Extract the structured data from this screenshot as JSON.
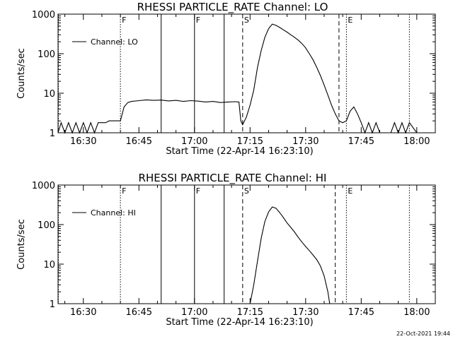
{
  "chart_data": [
    {
      "type": "line",
      "title": "RHESSI PARTICLE_RATE Channel: LO",
      "xlabel": "Start Time (22-Apr-14 16:23:10)",
      "ylabel": "Counts/sec",
      "y_scale": "log",
      "ylim": [
        1,
        1000
      ],
      "xlim": [
        "16:23:10",
        "18:05"
      ],
      "x_ticks": [
        "16:30",
        "16:45",
        "17:00",
        "17:15",
        "17:30",
        "17:45",
        "18:00"
      ],
      "y_ticks": [
        "1",
        "10",
        "100",
        "1000"
      ],
      "legend": {
        "placement": "top-left",
        "entries": [
          "Channel: LO"
        ]
      },
      "markers": [
        {
          "label": "",
          "time": "16:23:15",
          "style": "dotted"
        },
        {
          "label": "F",
          "time": "16:40",
          "style": "dotted"
        },
        {
          "label": "",
          "time": "16:51",
          "style": "solid"
        },
        {
          "label": "F",
          "time": "17:00",
          "style": "solid"
        },
        {
          "label": "",
          "time": "17:08",
          "style": "solid"
        },
        {
          "label": "S",
          "time": "17:13",
          "style": "dashed"
        },
        {
          "label": "",
          "time": "17:39",
          "style": "dashed"
        },
        {
          "label": "E",
          "time": "17:41",
          "style": "dotted"
        },
        {
          "label": "",
          "time": "17:58",
          "style": "dotted"
        }
      ],
      "series": [
        {
          "points": [
            [
              "16:23:10",
              1
            ],
            [
              "16:24",
              1.8
            ],
            [
              "16:25",
              1
            ],
            [
              "16:26",
              1.8
            ],
            [
              "16:27",
              1
            ],
            [
              "16:28",
              1.8
            ],
            [
              "16:29",
              1
            ],
            [
              "16:30",
              1.8
            ],
            [
              "16:31",
              1
            ],
            [
              "16:32",
              1.8
            ],
            [
              "16:33",
              1
            ],
            [
              "16:34",
              1.8
            ],
            [
              "16:35",
              1.8
            ],
            [
              "16:36",
              1.8
            ],
            [
              "16:37",
              2
            ],
            [
              "16:38",
              2
            ],
            [
              "16:39",
              2
            ],
            [
              "16:40",
              2
            ],
            [
              "16:41",
              4.5
            ],
            [
              "16:42",
              5.8
            ],
            [
              "16:43",
              6.2
            ],
            [
              "16:45",
              6.5
            ],
            [
              "16:47",
              6.8
            ],
            [
              "16:49",
              6.6
            ],
            [
              "16:51",
              6.7
            ],
            [
              "16:53",
              6.4
            ],
            [
              "16:55",
              6.6
            ],
            [
              "16:57",
              6.2
            ],
            [
              "16:59",
              6.5
            ],
            [
              "17:01",
              6.3
            ],
            [
              "17:03",
              6.0
            ],
            [
              "17:05",
              6.2
            ],
            [
              "17:07",
              5.8
            ],
            [
              "17:09",
              6.0
            ],
            [
              "17:11",
              6.1
            ],
            [
              "17:12",
              6.0
            ],
            [
              "17:12:30",
              2.0
            ],
            [
              "17:13",
              1.6
            ],
            [
              "17:14",
              2.5
            ],
            [
              "17:15",
              5
            ],
            [
              "17:16",
              12
            ],
            [
              "17:17",
              45
            ],
            [
              "17:18",
              120
            ],
            [
              "17:19",
              260
            ],
            [
              "17:20",
              430
            ],
            [
              "17:21",
              560
            ],
            [
              "17:22",
              520
            ],
            [
              "17:23",
              460
            ],
            [
              "17:24",
              400
            ],
            [
              "17:25",
              350
            ],
            [
              "17:26",
              300
            ],
            [
              "17:27",
              260
            ],
            [
              "17:28",
              220
            ],
            [
              "17:29",
              180
            ],
            [
              "17:30",
              140
            ],
            [
              "17:31",
              100
            ],
            [
              "17:32",
              70
            ],
            [
              "17:33",
              45
            ],
            [
              "17:34",
              28
            ],
            [
              "17:35",
              16
            ],
            [
              "17:36",
              9
            ],
            [
              "17:37",
              5
            ],
            [
              "17:38",
              3
            ],
            [
              "17:39",
              2
            ],
            [
              "17:40",
              1.8
            ],
            [
              "17:41",
              2
            ],
            [
              "17:42",
              3.5
            ],
            [
              "17:43",
              4.5
            ],
            [
              "17:44",
              3
            ],
            [
              "17:45",
              1.8
            ],
            [
              "17:46",
              1
            ],
            [
              "17:47",
              1.8
            ],
            [
              "17:48",
              1
            ],
            [
              "17:49",
              1.8
            ],
            [
              "17:50",
              1
            ],
            [
              "17:53",
              1
            ],
            [
              "17:54",
              1.8
            ],
            [
              "17:55",
              1
            ],
            [
              "17:56",
              1.8
            ],
            [
              "17:57",
              1
            ],
            [
              "17:58",
              1.8
            ],
            [
              "18:00",
              1
            ],
            [
              "18:05",
              1
            ]
          ]
        }
      ]
    },
    {
      "type": "line",
      "title": "RHESSI PARTICLE_RATE Channel: HI",
      "xlabel": "Start Time (22-Apr-14 16:23:10)",
      "ylabel": "Counts/sec",
      "y_scale": "log",
      "ylim": [
        1,
        1000
      ],
      "xlim": [
        "16:23:10",
        "18:05"
      ],
      "x_ticks": [
        "16:30",
        "16:45",
        "17:00",
        "17:15",
        "17:30",
        "17:45",
        "18:00"
      ],
      "y_ticks": [
        "1",
        "10",
        "100",
        "1000"
      ],
      "legend": {
        "placement": "top-left",
        "entries": [
          "Channel: HI"
        ]
      },
      "markers": [
        {
          "label": "",
          "time": "16:23:15",
          "style": "dotted"
        },
        {
          "label": "F",
          "time": "16:40",
          "style": "dotted"
        },
        {
          "label": "",
          "time": "16:51",
          "style": "solid"
        },
        {
          "label": "F",
          "time": "17:00",
          "style": "solid"
        },
        {
          "label": "",
          "time": "17:08",
          "style": "solid"
        },
        {
          "label": "S",
          "time": "17:13",
          "style": "dashed"
        },
        {
          "label": "",
          "time": "17:38",
          "style": "dashed"
        },
        {
          "label": "E",
          "time": "17:41",
          "style": "dotted"
        },
        {
          "label": "",
          "time": "17:58",
          "style": "dotted"
        }
      ],
      "series": [
        {
          "points": [
            [
              "17:15",
              1
            ],
            [
              "17:16",
              3
            ],
            [
              "17:17",
              12
            ],
            [
              "17:18",
              45
            ],
            [
              "17:19",
              120
            ],
            [
              "17:20",
              210
            ],
            [
              "17:21",
              280
            ],
            [
              "17:22",
              260
            ],
            [
              "17:23",
              200
            ],
            [
              "17:24",
              150
            ],
            [
              "17:25",
              110
            ],
            [
              "17:26",
              85
            ],
            [
              "17:27",
              65
            ],
            [
              "17:28",
              48
            ],
            [
              "17:29",
              36
            ],
            [
              "17:30",
              28
            ],
            [
              "17:31",
              22
            ],
            [
              "17:32",
              17
            ],
            [
              "17:33",
              13
            ],
            [
              "17:34",
              9
            ],
            [
              "17:35",
              5
            ],
            [
              "17:36",
              2
            ],
            [
              "17:36:30",
              1
            ]
          ]
        }
      ]
    }
  ],
  "footer_timestamp": "22-Oct-2021 19:44"
}
